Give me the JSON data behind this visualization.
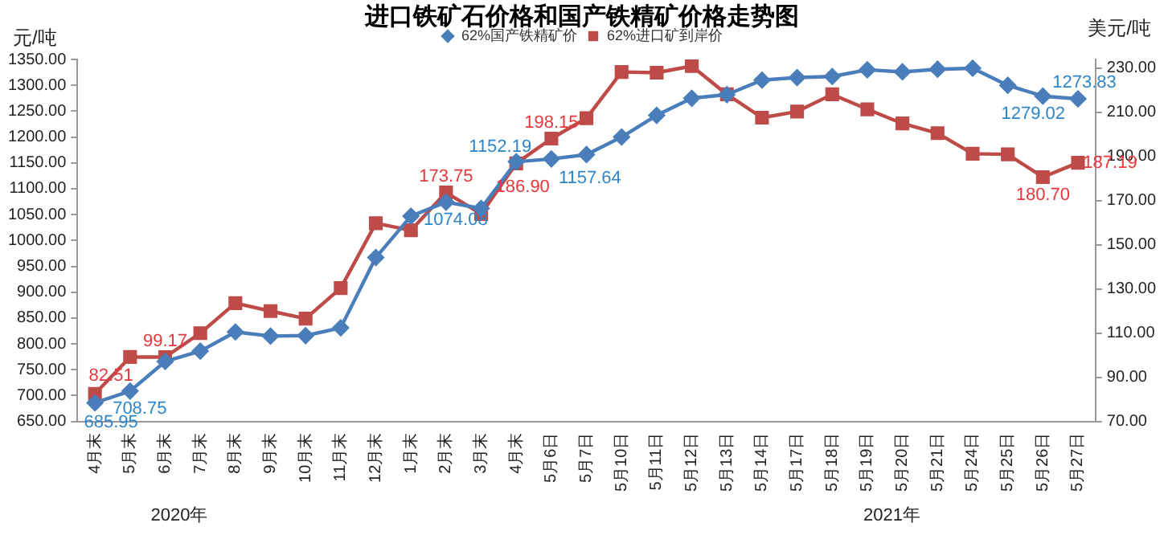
{
  "chart_data": {
    "type": "line",
    "title": "进口铁矿石价格和国产铁精矿价格走势图",
    "ylabel": "元/吨",
    "y2label": "美元/吨",
    "categories": [
      "4月末",
      "5月末",
      "6月末",
      "7月末",
      "8月末",
      "9月末",
      "10月末",
      "11月末",
      "12月末",
      "1月末",
      "2月末",
      "3月末",
      "4月末",
      "5月6日",
      "5月7日",
      "5月10日",
      "5月11日",
      "5月12日",
      "5月13日",
      "5月14日",
      "5月17日",
      "5月18日",
      "5月19日",
      "5月20日",
      "5月21日",
      "5月24日",
      "5月25日",
      "5月26日",
      "5月27日"
    ],
    "series": [
      {
        "name": "62%国产铁精矿价",
        "color": "#4a7ebb",
        "marker": "diamond",
        "values": [
          685.95,
          708.75,
          766,
          786,
          823,
          815,
          816,
          831,
          967,
          1047,
          1074.08,
          1062,
          1152.19,
          1157.64,
          1166,
          1200,
          1242,
          1275,
          1282,
          1310,
          1315,
          1317,
          1330,
          1326,
          1331,
          1333,
          1300,
          1279.02,
          1273.83
        ],
        "value_labels": [
          "685.95",
          "708.75",
          null,
          null,
          null,
          null,
          null,
          null,
          null,
          null,
          "1074.08",
          null,
          "1152.19",
          "1157.64",
          null,
          null,
          null,
          null,
          null,
          null,
          null,
          null,
          null,
          null,
          null,
          null,
          null,
          "1279.02",
          "1273.83"
        ]
      },
      {
        "name": "62%进口矿到岸价",
        "color": "#be4b48",
        "marker": "square",
        "axis": "y2",
        "values": [
          82.51,
          99.2,
          99.17,
          110,
          123.6,
          120,
          116.6,
          130.4,
          159.8,
          156.6,
          173.75,
          164,
          186.9,
          198.15,
          207.4,
          228.3,
          228,
          231,
          218.2,
          207.6,
          210.4,
          218.2,
          211.4,
          205,
          200.6,
          191.3,
          191,
          180.7,
          187.19
        ],
        "value_labels": [
          "82.51",
          null,
          "99.17",
          null,
          null,
          null,
          null,
          null,
          null,
          null,
          "173.75",
          null,
          "186.90",
          "198.15",
          null,
          null,
          null,
          null,
          null,
          null,
          null,
          null,
          null,
          null,
          null,
          null,
          null,
          "180.70",
          "187.19"
        ]
      }
    ],
    "ylim": [
      650,
      1350
    ],
    "yticks": [
      {
        "value": 650,
        "label": "650.00"
      },
      {
        "value": 700,
        "label": "700.00"
      },
      {
        "value": 750,
        "label": "750.00"
      },
      {
        "value": 800,
        "label": "800.00"
      },
      {
        "value": 850,
        "label": "850.00"
      },
      {
        "value": 900,
        "label": "900.00"
      },
      {
        "value": 950,
        "label": "950.00"
      },
      {
        "value": 1000,
        "label": "1000.00"
      },
      {
        "value": 1050,
        "label": "1050.00"
      },
      {
        "value": 1100,
        "label": "1100.00"
      },
      {
        "value": 1150,
        "label": "1150.00"
      },
      {
        "value": 1200,
        "label": "1200.00"
      },
      {
        "value": 1250,
        "label": "1250.00"
      },
      {
        "value": 1300,
        "label": "1300.00"
      },
      {
        "value": 1350,
        "label": "1350.00"
      }
    ],
    "y2lim": [
      70,
      234
    ],
    "y2ticks": [
      {
        "value": 70,
        "label": "70.00"
      },
      {
        "value": 90,
        "label": "90.00"
      },
      {
        "value": 110,
        "label": "110.00"
      },
      {
        "value": 130,
        "label": "130.00"
      },
      {
        "value": 150,
        "label": "150.00"
      },
      {
        "value": 170,
        "label": "170.00"
      },
      {
        "value": 190,
        "label": "190.00"
      },
      {
        "value": 210,
        "label": "210.00"
      },
      {
        "value": 230,
        "label": "230.00"
      }
    ],
    "annotations": [
      "2020年",
      "2021年"
    ],
    "grid": false,
    "legend": "top",
    "line_style": "solid"
  }
}
